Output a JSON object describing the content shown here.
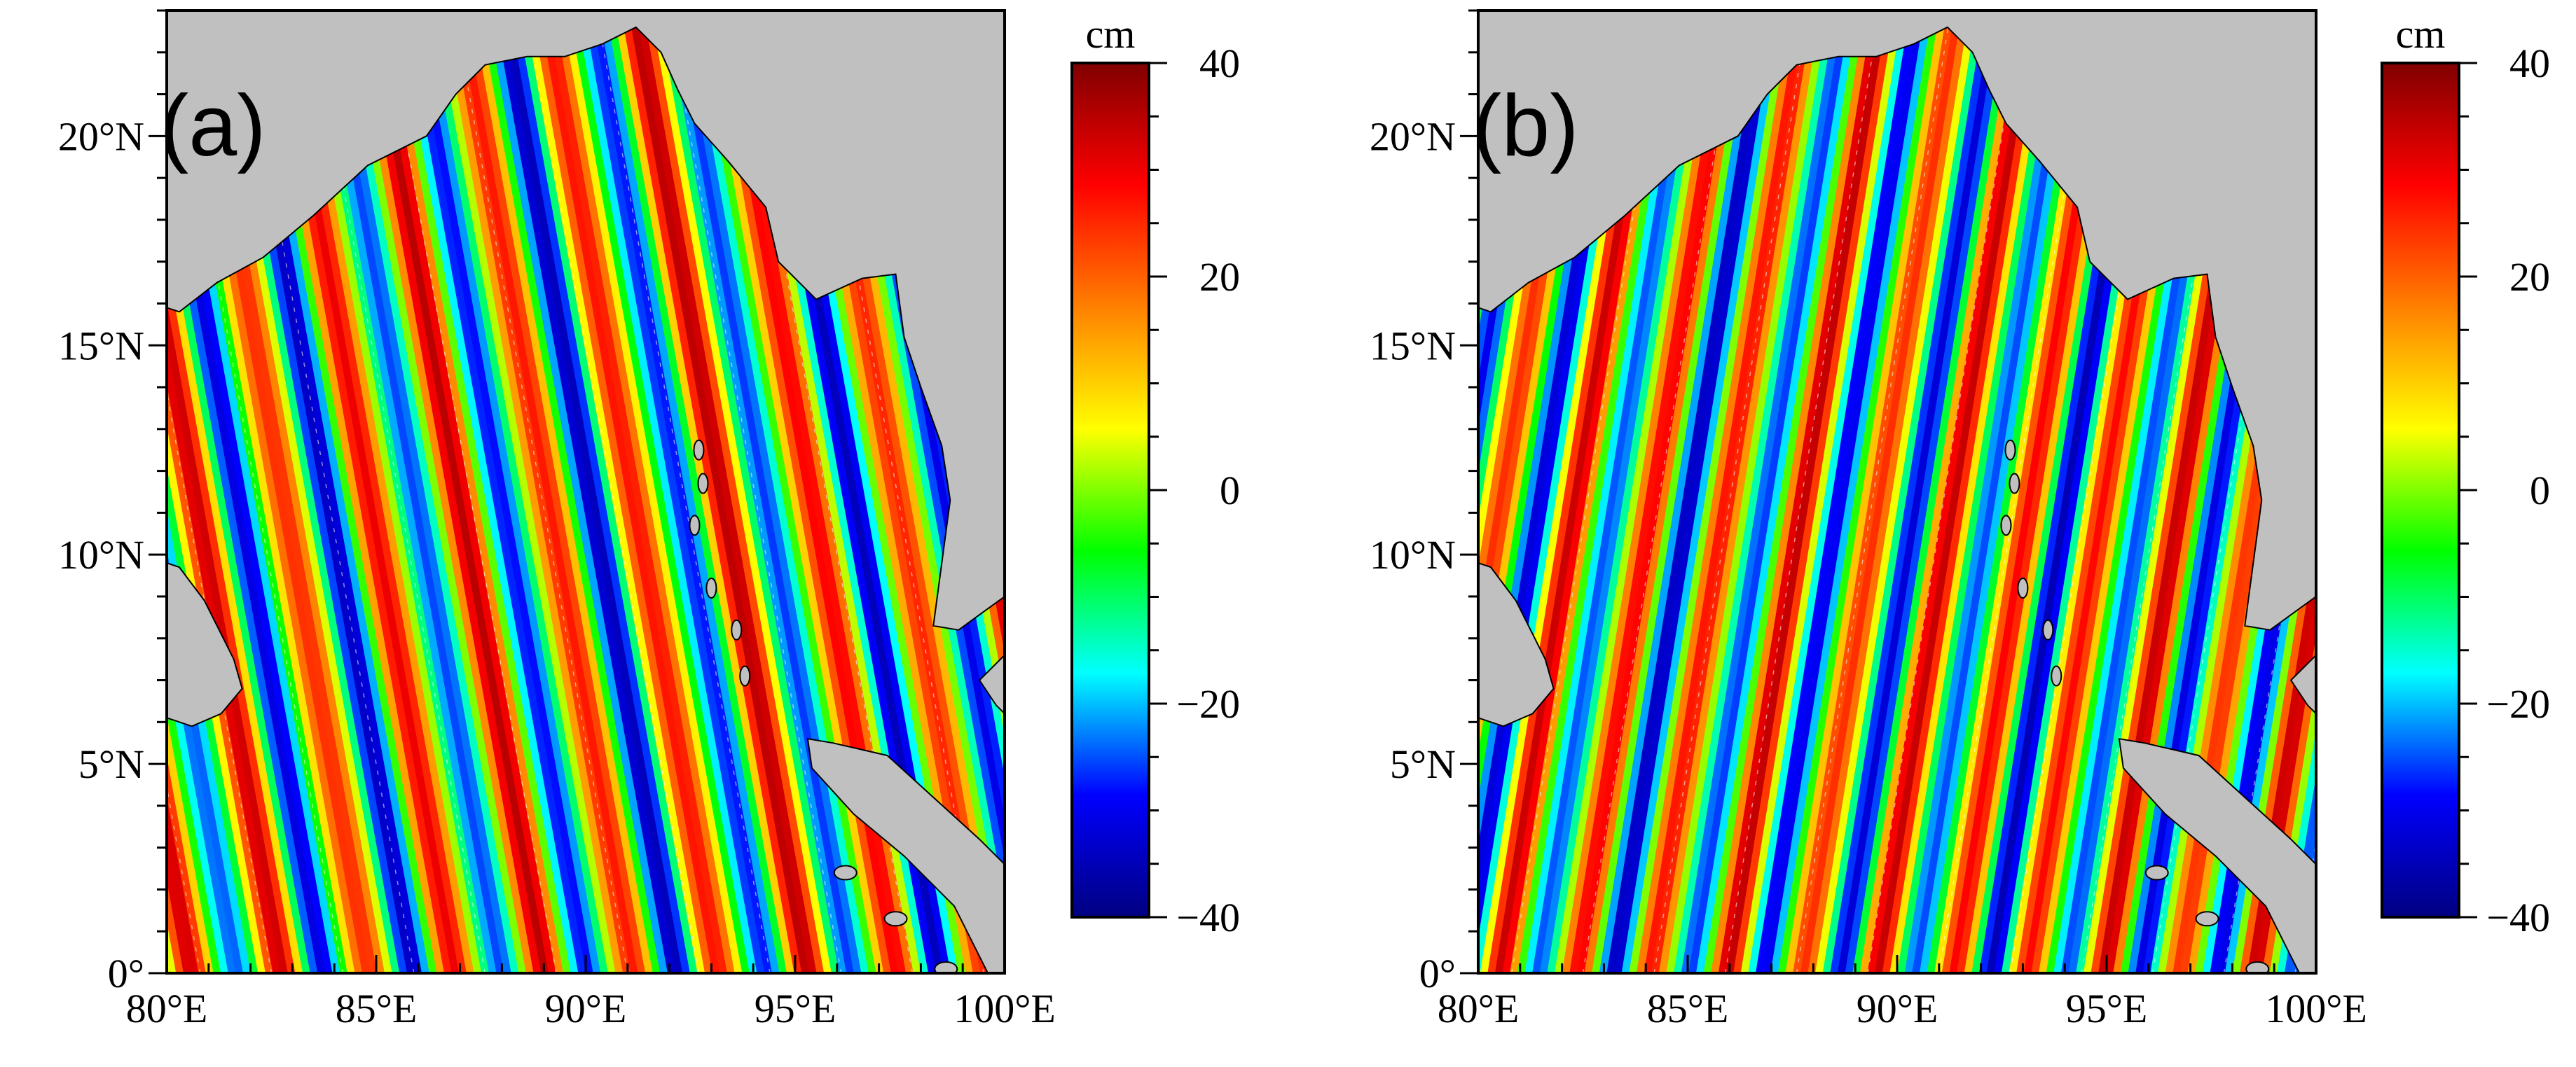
{
  "chart_data": [
    {
      "type": "heatmap",
      "panel_label": "(a)",
      "x_range": [
        80,
        100
      ],
      "y_range": [
        0,
        23
      ],
      "x_ticks": [
        80,
        85,
        90,
        95,
        100
      ],
      "x_tick_labels": [
        "80°E",
        "85°E",
        "90°E",
        "95°E",
        "100°E"
      ],
      "y_ticks": [
        0,
        5,
        10,
        15,
        20
      ],
      "y_tick_labels": [
        "0°",
        "5°N",
        "10°N",
        "15°N",
        "20°N"
      ],
      "wave_tilt_deg_lon_per_deg_lat": -0.18,
      "wavelength_deg": 2.1,
      "amplitude_cm": 35,
      "colorbar": {
        "unit": "cm",
        "range": [
          -40,
          40
        ],
        "ticks": [
          40,
          20,
          0,
          -20,
          -40
        ],
        "tick_labels": [
          "40",
          "20",
          "0",
          "−20",
          "−40"
        ],
        "colormap": [
          "#000080",
          "#0000ff",
          "#00ffff",
          "#00ff00",
          "#ffff00",
          "#ff8000",
          "#ff0000",
          "#800000"
        ]
      }
    },
    {
      "type": "heatmap",
      "panel_label": "(b)",
      "x_range": [
        80,
        100
      ],
      "y_range": [
        0,
        23
      ],
      "x_ticks": [
        80,
        85,
        90,
        95,
        100
      ],
      "x_tick_labels": [
        "80°E",
        "85°E",
        "90°E",
        "95°E",
        "100°E"
      ],
      "y_ticks": [
        0,
        5,
        10,
        15,
        20
      ],
      "y_tick_labels": [
        "0°",
        "5°N",
        "10°N",
        "15°N",
        "20°N"
      ],
      "wave_tilt_deg_lon_per_deg_lat": 0.16,
      "wavelength_deg": 1.8,
      "amplitude_cm": 35,
      "colorbar": {
        "unit": "cm",
        "range": [
          -40,
          40
        ],
        "ticks": [
          40,
          20,
          0,
          -20,
          -40
        ],
        "tick_labels": [
          "40",
          "20",
          "0",
          "−20",
          "−40"
        ],
        "colormap": [
          "#000080",
          "#0000ff",
          "#00ffff",
          "#00ff00",
          "#ffff00",
          "#ff8000",
          "#ff0000",
          "#800000"
        ]
      }
    }
  ],
  "land_color": "#c0c0c0"
}
